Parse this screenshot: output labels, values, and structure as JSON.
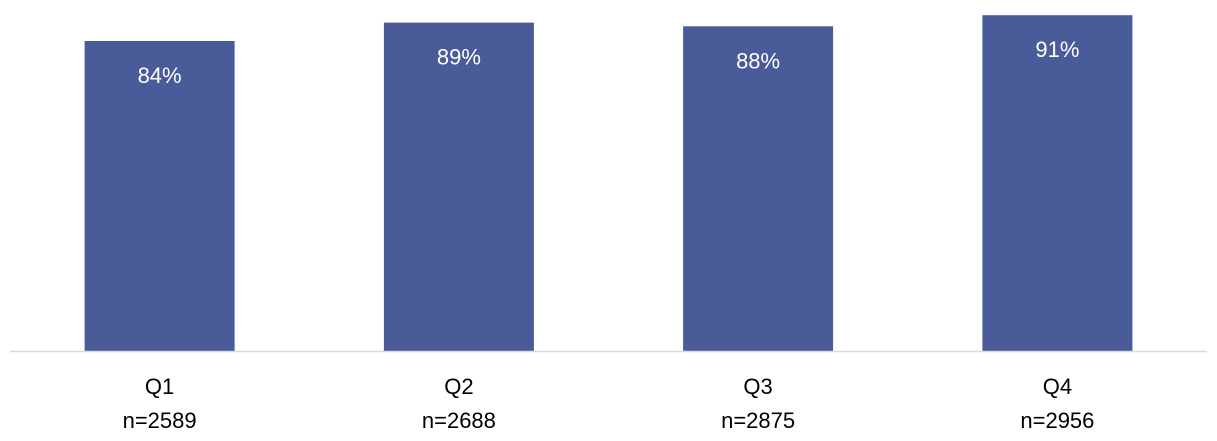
{
  "chart_data": {
    "type": "bar",
    "categories": [
      "Q1",
      "Q2",
      "Q3",
      "Q4"
    ],
    "sample_sizes": [
      "n=2589",
      "n=2688",
      "n=2875",
      "n=2956"
    ],
    "values": [
      84,
      89,
      88,
      91
    ],
    "data_labels": [
      "84%",
      "89%",
      "88%",
      "91%"
    ],
    "bar_color": "#4A5B9A",
    "label_color": "#FFFFFF",
    "axis_color": "#D9D9D9",
    "text_color": "#000000",
    "grid": false,
    "legend": "none",
    "ylim": [
      0,
      100
    ]
  }
}
